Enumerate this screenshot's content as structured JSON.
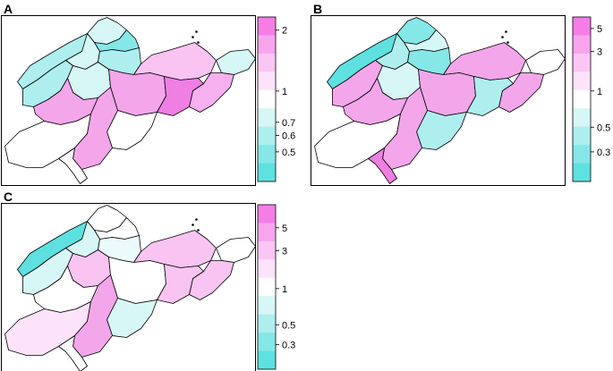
{
  "panels": [
    {
      "letter": "A",
      "legend_ticks": [
        "2",
        "1",
        "0.7",
        "0.6",
        "0.5"
      ],
      "legend_colors": [
        "#f57ee6",
        "#f9a5ee",
        "#fbc6f4",
        "#fde3fa",
        "#ffffff",
        "#d7f6f6",
        "#aeeeee",
        "#86e7e7",
        "#5fe0e0"
      ],
      "region_colors": [
        "#d7f6f6",
        "#aeeeee",
        "#86e7e7",
        "#d7f6f6",
        "#aeeeee",
        "#f9c4f2",
        "#d7f6f6",
        "#f7b0ef",
        "#aeeeee",
        "#d7f6f6",
        "#f4a6ea",
        "#f07fe3",
        "#f4a6ea",
        "#ffffff",
        "#ffffff",
        "#f4a6ea",
        "#ffffff"
      ]
    },
    {
      "letter": "B",
      "legend_ticks": [
        "5",
        "3",
        "1",
        "0.5",
        "0.3"
      ],
      "legend_colors": [
        "#f57ee6",
        "#f9a5ee",
        "#fbc6f4",
        "#fde3fa",
        "#ffffff",
        "#d7f6f6",
        "#aeeeee",
        "#86e7e7",
        "#5fe0e0"
      ],
      "region_colors": [
        "#86e7e7",
        "#5fe0e0",
        "#d7f6f6",
        "#aeeeee",
        "#86e7e7",
        "#f4a6ea",
        "#ffffff",
        "#f4a6ea",
        "#f4a6ea",
        "#d7f6f6",
        "#f4a6ea",
        "#aeeeee",
        "#f4a6ea",
        "#ffffff",
        "#aeeeee",
        "#f4a6ea",
        "#f07fe3"
      ]
    },
    {
      "letter": "C",
      "legend_ticks": [
        "5",
        "3",
        "1",
        "0.5",
        "0.3"
      ],
      "legend_colors": [
        "#f57ee6",
        "#f9a5ee",
        "#fbc6f4",
        "#fde3fa",
        "#ffffff",
        "#d7f6f6",
        "#aeeeee",
        "#86e7e7",
        "#5fe0e0"
      ],
      "region_colors": [
        "#ffffff",
        "#5fe0e0",
        "#ffffff",
        "#d7f6f6",
        "#ebfbfb",
        "#f9c4f2",
        "#ffffff",
        "#f9c4f2",
        "#d7f6f6",
        "#f9c4f2",
        "#ffffff",
        "#f9c4f2",
        "#ffffff",
        "#fde3fa",
        "#d7f6f6",
        "#f4a6ea",
        "#ffffff"
      ]
    }
  ]
}
